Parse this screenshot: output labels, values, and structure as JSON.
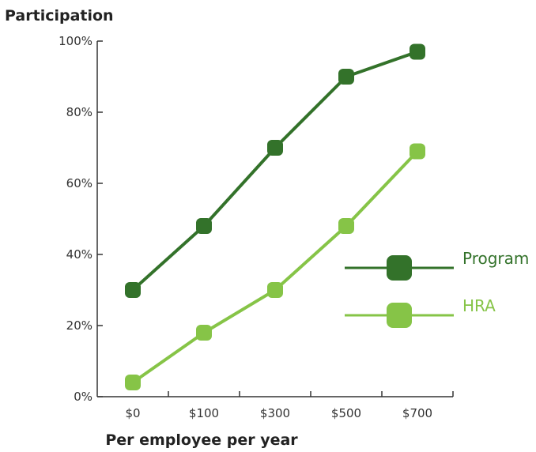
{
  "chart_data": {
    "type": "line",
    "ylabel": "Participation",
    "xlabel": "Per employee per year",
    "categories": [
      "$0",
      "$100",
      "$300",
      "$500",
      "$700"
    ],
    "yticks": [
      {
        "value": 0,
        "label": "0%"
      },
      {
        "value": 20,
        "label": "20%"
      },
      {
        "value": 40,
        "label": "40%"
      },
      {
        "value": 60,
        "label": "60%"
      },
      {
        "value": 80,
        "label": "80%"
      },
      {
        "value": 100,
        "label": "100%"
      }
    ],
    "ylim": [
      0,
      100
    ],
    "grid": false,
    "legend_position": "right",
    "series": [
      {
        "name": "Program",
        "color": "#33722a",
        "values": [
          30,
          48,
          70,
          90,
          97
        ]
      },
      {
        "name": "HRA",
        "color": "#86c447",
        "values": [
          4,
          18,
          30,
          48,
          69
        ]
      }
    ]
  }
}
